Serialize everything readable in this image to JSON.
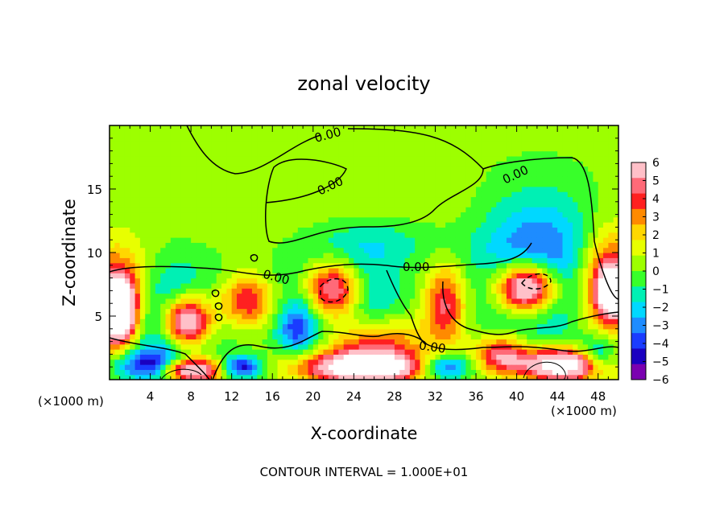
{
  "chart_data": {
    "type": "heatmap",
    "title": "zonal velocity",
    "xlabel": "X-coordinate",
    "ylabel": "Z-coordinate",
    "x_unit_label_left": "(×1000 m)",
    "x_unit_label_right": "(×1000 m)",
    "footer": "CONTOUR INTERVAL = 1.000E+01",
    "xlim": [
      0,
      50
    ],
    "ylim": [
      0,
      20
    ],
    "x_ticks": [
      "4",
      "8",
      "12",
      "16",
      "20",
      "24",
      "28",
      "32",
      "36",
      "40",
      "44",
      "48"
    ],
    "y_ticks": [
      "5",
      "10",
      "15"
    ],
    "colorbar": {
      "vmin": -6,
      "vmax": 6,
      "labels": [
        "6",
        "5",
        "4",
        "3",
        "2",
        "1",
        "0",
        "−1",
        "−2",
        "−3",
        "−4",
        "−5",
        "−6"
      ],
      "colors": [
        "#ffc0c8",
        "#ff6a78",
        "#ff2020",
        "#ff8a00",
        "#ffd700",
        "#e8ff00",
        "#9dff00",
        "#38ff2a",
        "#00f0b4",
        "#00d8ff",
        "#1e8cff",
        "#1a3cff",
        "#1a00c0",
        "#7a00b0"
      ]
    },
    "contour_labels": [
      "0.00",
      "0.00",
      "0.00",
      "0.00",
      "0.00",
      "0.00"
    ],
    "field_blobs": [
      {
        "x": 5.5,
        "z": 4.8,
        "rx": 5.2,
        "rz": 4.0,
        "amp": -5.5
      },
      {
        "x": 7.5,
        "z": 4.6,
        "rx": 2.6,
        "rz": 2.2,
        "amp": 10
      },
      {
        "x": 1.0,
        "z": 6.0,
        "rx": 3.5,
        "rz": 4.0,
        "amp": 6
      },
      {
        "x": 0.8,
        "z": 5.5,
        "rx": 1.6,
        "rz": 2.4,
        "amp": 10
      },
      {
        "x": 13.5,
        "z": 6.2,
        "rx": 2.8,
        "rz": 2.0,
        "amp": 4.5
      },
      {
        "x": 18.5,
        "z": 4.0,
        "rx": 2.0,
        "rz": 2.0,
        "amp": -3.5
      },
      {
        "x": 22.5,
        "z": 6.5,
        "rx": 5.0,
        "rz": 4.0,
        "amp": -5.5
      },
      {
        "x": 22.0,
        "z": 7.0,
        "rx": 3.0,
        "rz": 2.5,
        "amp": 10
      },
      {
        "x": 25.5,
        "z": 3.0,
        "rx": 5.0,
        "rz": 2.0,
        "amp": 4.5
      },
      {
        "x": 33.0,
        "z": 6.0,
        "rx": 2.0,
        "rz": 3.0,
        "amp": 4.5
      },
      {
        "x": 42.0,
        "z": 9.0,
        "rx": 6.0,
        "rz": 5.5,
        "amp": -4.5
      },
      {
        "x": 41.0,
        "z": 7.3,
        "rx": 3.0,
        "rz": 2.0,
        "amp": 10
      },
      {
        "x": 49.0,
        "z": 7.5,
        "rx": 2.8,
        "rz": 4.0,
        "amp": 6
      },
      {
        "x": 49.5,
        "z": 7.0,
        "rx": 1.2,
        "rz": 1.6,
        "amp": 10
      },
      {
        "x": 4.0,
        "z": 1.2,
        "rx": 4.0,
        "rz": 1.2,
        "amp": -4.5
      },
      {
        "x": 8.0,
        "z": 0.8,
        "rx": 3.0,
        "rz": 1.0,
        "amp": 9
      },
      {
        "x": 13.0,
        "z": 1.0,
        "rx": 2.0,
        "rz": 0.9,
        "amp": -5
      },
      {
        "x": 25.0,
        "z": 1.0,
        "rx": 6.0,
        "rz": 1.2,
        "amp": 9
      },
      {
        "x": 33.0,
        "z": 1.0,
        "rx": 2.5,
        "rz": 1.0,
        "amp": -5
      },
      {
        "x": 38.5,
        "z": 2.0,
        "rx": 2.5,
        "rz": 1.5,
        "amp": 5
      },
      {
        "x": 44.5,
        "z": 1.2,
        "rx": 4.0,
        "rz": 1.3,
        "amp": 9
      },
      {
        "x": 48.0,
        "z": 2.0,
        "rx": 2.0,
        "rz": 1.5,
        "amp": -4
      },
      {
        "x": 25.0,
        "z": 13.5,
        "rx": 14.0,
        "rz": 3.0,
        "amp": 0.6
      },
      {
        "x": 27.0,
        "z": 11.0,
        "rx": 6.0,
        "rz": 2.0,
        "amp": -1.5
      }
    ]
  }
}
